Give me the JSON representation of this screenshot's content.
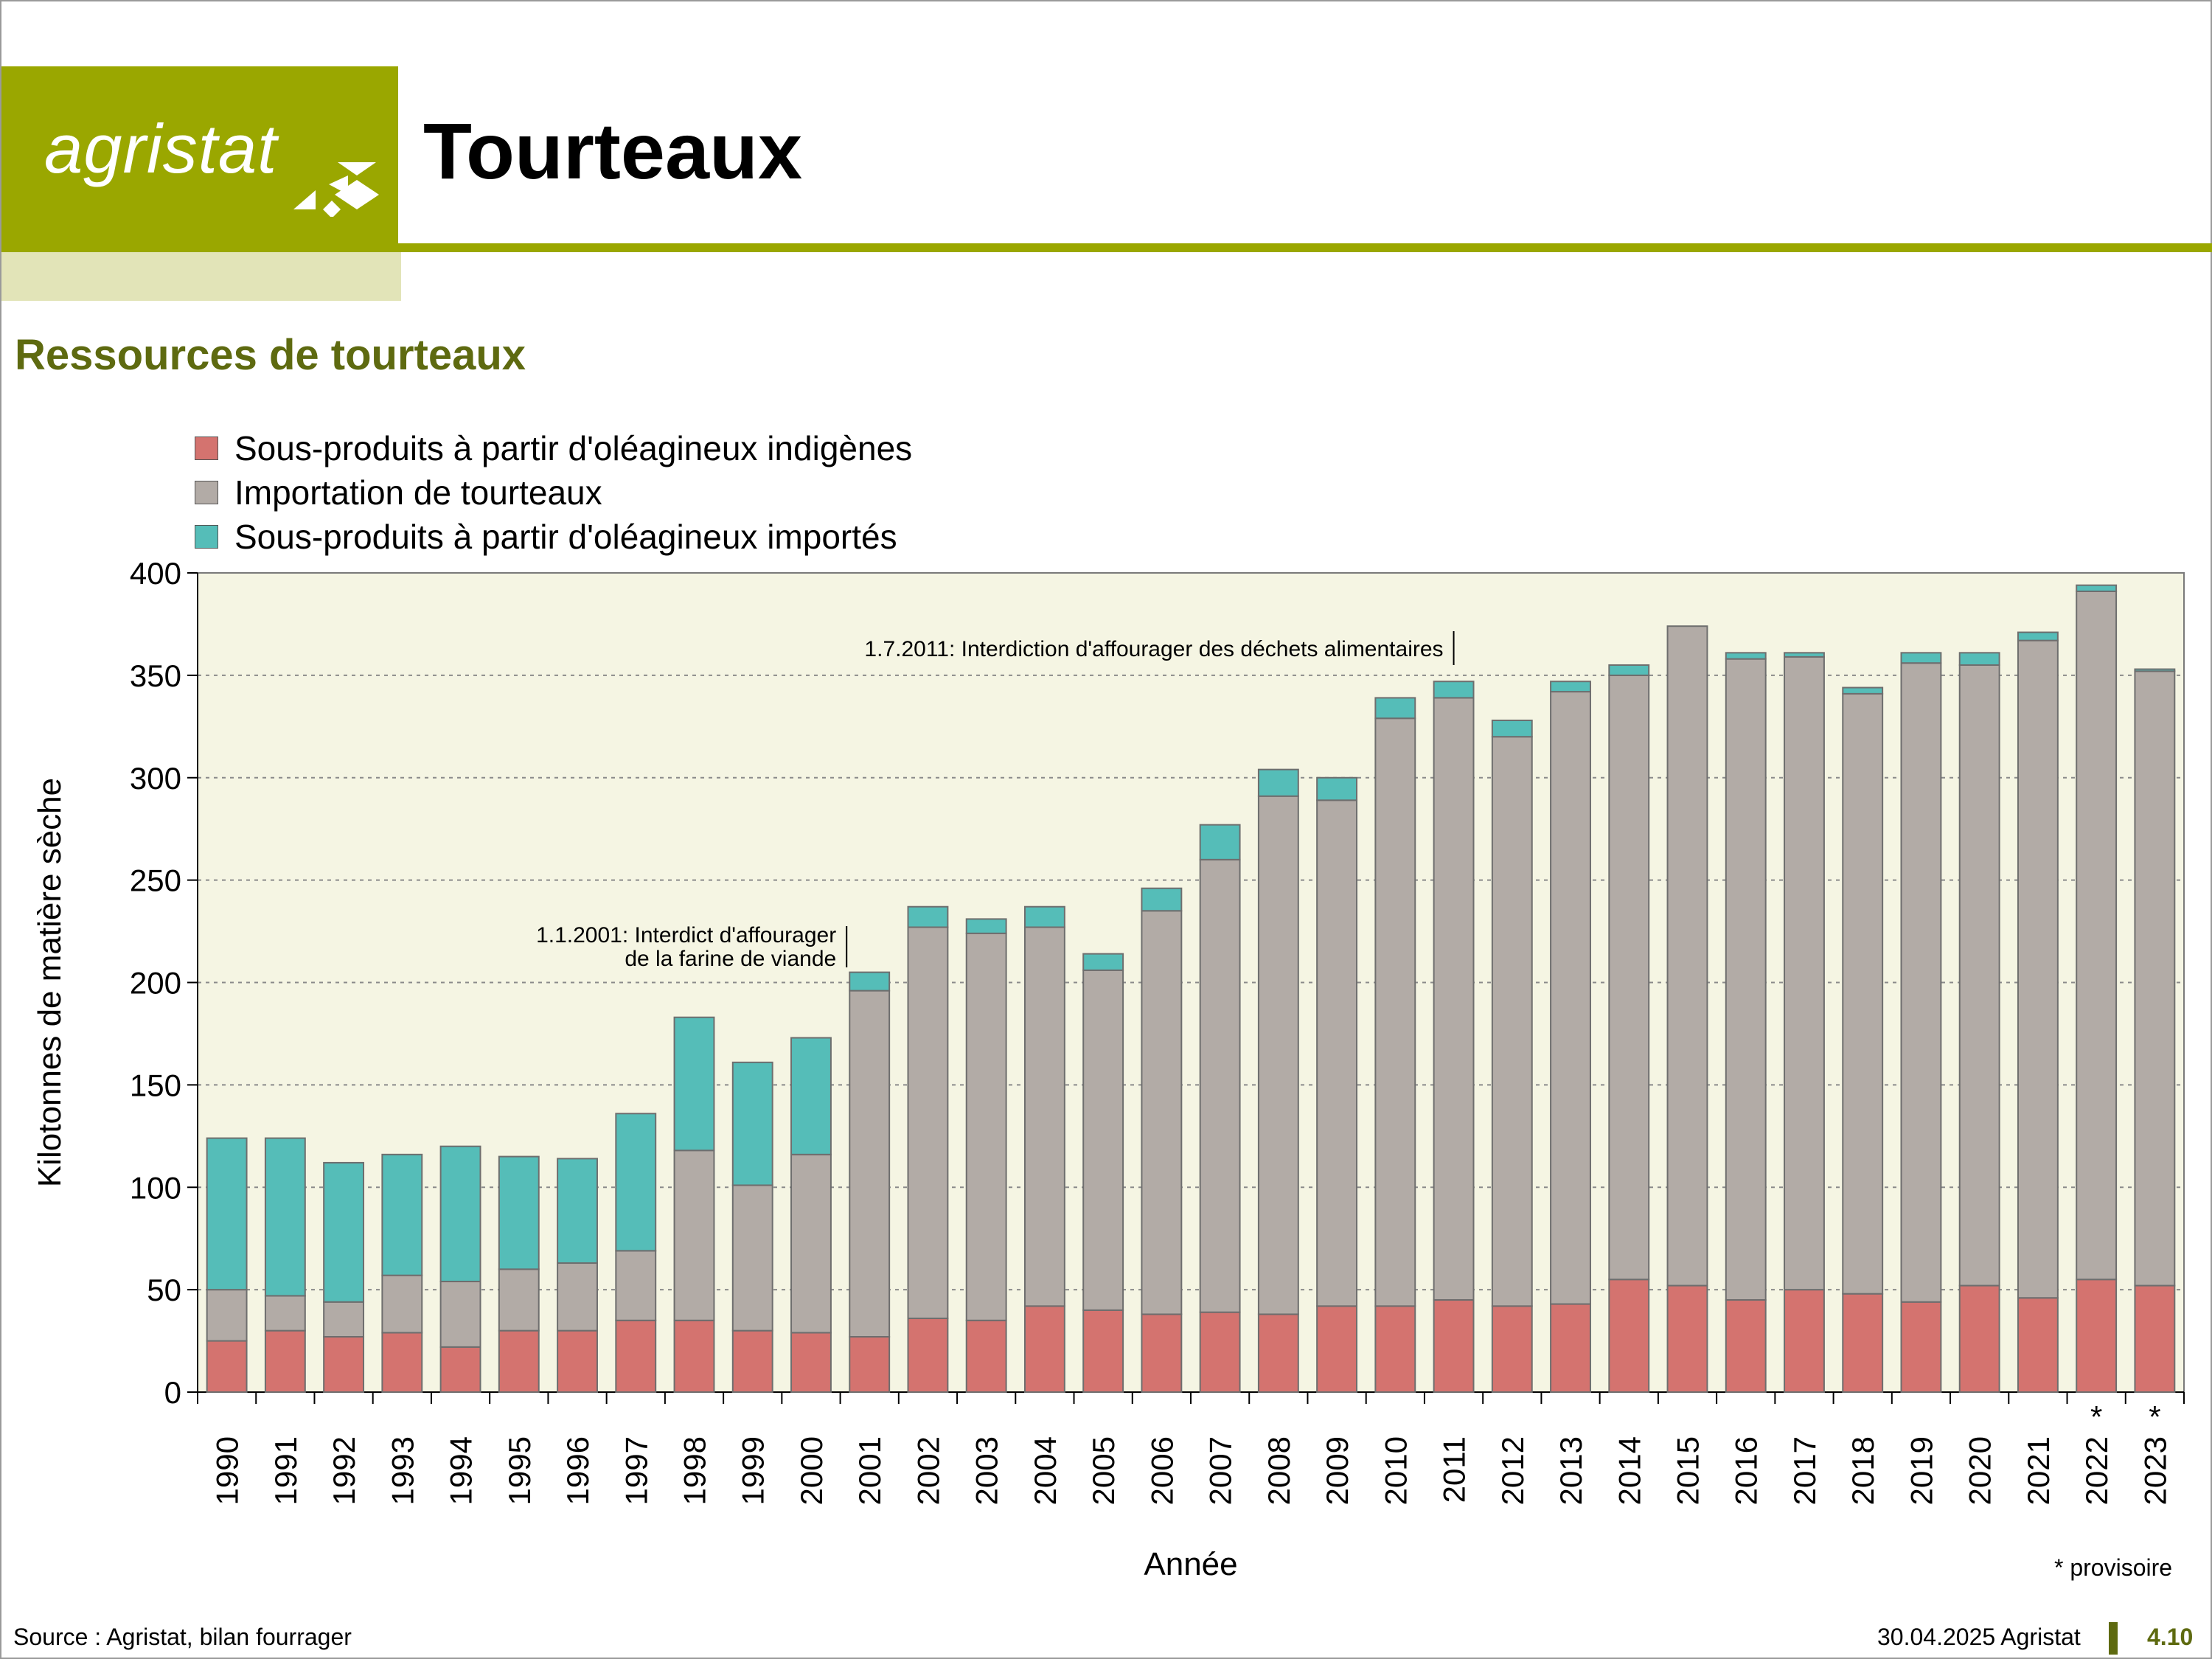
{
  "brand": {
    "logo_text": "agristat"
  },
  "header": {
    "title": "Tourteaux"
  },
  "section": {
    "title": "Ressources de tourteaux"
  },
  "colors": {
    "brand_green": "#9aa700",
    "title_green": "#5e6a10",
    "plot_bg": "#f5f5e3",
    "indigenous": "#d4736f",
    "import": "#b2aba6",
    "imported_oilseeds": "#55bdb8"
  },
  "chart_data": {
    "type": "bar",
    "stacked": true,
    "xlabel": "Année",
    "ylabel": "Kilotonnes de matière sèche",
    "ylim": [
      0,
      400
    ],
    "yticks": [
      0,
      50,
      100,
      150,
      200,
      250,
      300,
      350,
      400
    ],
    "grid": true,
    "legend_position": "top-left",
    "categories": [
      "1990",
      "1991",
      "1992",
      "1993",
      "1994",
      "1995",
      "1996",
      "1997",
      "1998",
      "1999",
      "2000",
      "2001",
      "2002",
      "2003",
      "2004",
      "2005",
      "2006",
      "2007",
      "2008",
      "2009",
      "2010",
      "2011",
      "2012",
      "2013",
      "2014",
      "2015",
      "2016",
      "2017",
      "2018",
      "2019",
      "2020",
      "2021",
      "2022",
      "2023"
    ],
    "provisional_markers": [
      "",
      "",
      "",
      "",
      "",
      "",
      "",
      "",
      "",
      "",
      "",
      "",
      "",
      "",
      "",
      "",
      "",
      "",
      "",
      "",
      "",
      "",
      "",
      "",
      "",
      "",
      "",
      "",
      "",
      "",
      "",
      "",
      "*",
      "*"
    ],
    "series": [
      {
        "name": "Sous-produits à partir d'oléagineux indigènes",
        "color": "#d4736f",
        "values": [
          25,
          30,
          27,
          29,
          22,
          30,
          30,
          35,
          35,
          30,
          29,
          27,
          36,
          35,
          42,
          40,
          38,
          39,
          38,
          42,
          42,
          45,
          42,
          43,
          55,
          52,
          45,
          50,
          48,
          44,
          52,
          46,
          55,
          52
        ]
      },
      {
        "name": "Importation de tourteaux",
        "color": "#b2aba6",
        "values": [
          25,
          17,
          17,
          28,
          32,
          30,
          33,
          34,
          83,
          71,
          87,
          169,
          191,
          189,
          185,
          166,
          197,
          221,
          253,
          247,
          287,
          294,
          278,
          299,
          295,
          322,
          313,
          309,
          293,
          312,
          303,
          321,
          336,
          300
        ]
      },
      {
        "name": "Sous-produits à partir d'oléagineux importés",
        "color": "#55bdb8",
        "values": [
          74,
          77,
          68,
          59,
          66,
          55,
          51,
          67,
          65,
          60,
          57,
          9,
          10,
          7,
          10,
          8,
          11,
          17,
          13,
          11,
          10,
          8,
          8,
          5,
          5,
          0,
          3,
          2,
          3,
          5,
          6,
          4,
          3,
          1
        ]
      }
    ],
    "annotations": [
      {
        "category": "2001",
        "lines": [
          "1.1.2001: Interdict d'affourager",
          "de la farine de viande"
        ]
      },
      {
        "category": "2011",
        "lines": [
          "1.7.2011: Interdiction d'affourager des déchets alimentaires"
        ]
      }
    ]
  },
  "notes": {
    "provisional": "* provisoire"
  },
  "footer": {
    "source": "Source : Agristat, bilan fourrager",
    "date": "30.04.2025 Agristat",
    "page": "4.10"
  }
}
